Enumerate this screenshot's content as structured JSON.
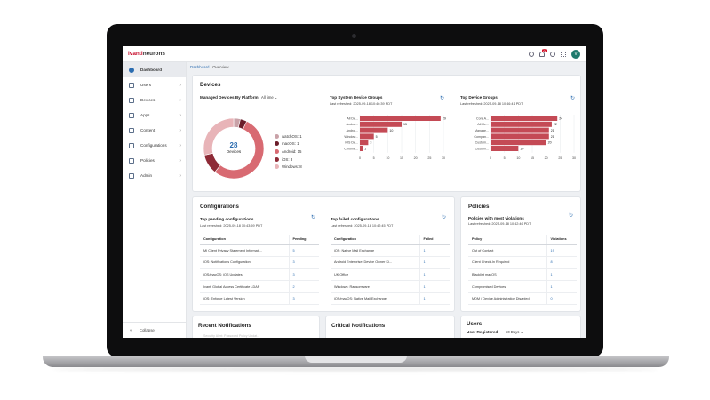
{
  "topbar": {
    "logo_a": "ivanti",
    "logo_b": "neurons",
    "notif_count": "22",
    "avatar": "V"
  },
  "sidebar": {
    "items": [
      {
        "label": "Dashboard",
        "icon": "dashboard-icon",
        "active": true
      },
      {
        "label": "Users",
        "icon": "users-icon"
      },
      {
        "label": "Devices",
        "icon": "devices-icon"
      },
      {
        "label": "Apps",
        "icon": "apps-icon"
      },
      {
        "label": "Content",
        "icon": "content-icon"
      },
      {
        "label": "Configurations",
        "icon": "configurations-icon"
      },
      {
        "label": "Policies",
        "icon": "policies-icon"
      },
      {
        "label": "Admin",
        "icon": "admin-icon"
      }
    ],
    "collapse": "Collapse"
  },
  "breadcrumb": {
    "link": "Dashboard",
    "current": " / Overview"
  },
  "devices": {
    "title": "Devices",
    "platform_title": "Managed Devices By Platform",
    "platform_filter": "All time",
    "total": "28",
    "total_label": "Devices",
    "platforms": [
      {
        "label": "watchOS: 1",
        "value": 1,
        "color": "#c9a2a8"
      },
      {
        "label": "macOS: 1",
        "value": 1,
        "color": "#6b1d2a"
      },
      {
        "label": "Android: 15",
        "value": 15,
        "color": "#d86a72"
      },
      {
        "label": "iOS: 3",
        "value": 3,
        "color": "#8e2a36"
      },
      {
        "label": "Windows: 8",
        "value": 8,
        "color": "#e8b4b8"
      }
    ]
  },
  "chart_data": [
    {
      "type": "bar",
      "title": "Top System Device Groups",
      "subtitle": "Last refreshed: 2025-09-18 10:46:39 PDT",
      "categories": [
        "All De...",
        "Androi...",
        "Androi...",
        "Window...",
        "iOS De...",
        "Chrome..."
      ],
      "values": [
        29,
        15,
        10,
        5,
        3,
        1
      ],
      "xlim": [
        0,
        30
      ],
      "ticks": [
        0,
        5,
        10,
        15,
        20,
        25,
        30
      ]
    },
    {
      "type": "bar",
      "title": "Top Device Groups",
      "subtitle": "Last refreshed: 2025-09-18 10:46:41 PDT",
      "categories": [
        "Core A...",
        "All Re...",
        "Manage...",
        "Compan...",
        "Custom...",
        "Custom..."
      ],
      "values": [
        24,
        22,
        21,
        21,
        20,
        10
      ],
      "xlim": [
        0,
        30
      ],
      "ticks": [
        0,
        5,
        10,
        15,
        20,
        25,
        30
      ]
    }
  ],
  "configurations": {
    "title": "Configurations",
    "pending": {
      "title": "Top pending configurations",
      "refreshed": "Last refreshed: 2025-09-18 10:43:59 PDT",
      "col1": "Configuration",
      "col2": "Pending",
      "rows": [
        [
          "MI Client Privacy Statement Informati...",
          "5"
        ],
        [
          "iOS: Notifications Configuration",
          "3"
        ],
        [
          "iOS/macOS: iOS Updates",
          "3"
        ],
        [
          "Ivanti Global Access Certificate LDAP",
          "2"
        ],
        [
          "iOS: Enforce Latest Version",
          "3"
        ]
      ]
    },
    "failed": {
      "title": "Top failed configurations",
      "refreshed": "Last refreshed: 2025-09-18 10:42:45 PDT",
      "col1": "Configuration",
      "col2": "Failed",
      "rows": [
        [
          "iOS: Native Mail Exchange",
          "1"
        ],
        [
          "Android Enterprise: Device Owner Ki...",
          "1"
        ],
        [
          "UK Office",
          "1"
        ],
        [
          "Windows: Ransomware",
          "1"
        ],
        [
          "iOS/macOS: Native Mail Exchange",
          "1"
        ]
      ]
    }
  },
  "policies": {
    "title": "Policies",
    "sub": "Policies with most violations",
    "refreshed": "Last refreshed: 2025-09-18 10:42:46 PDT",
    "col1": "Policy",
    "col2": "Violations",
    "rows": [
      [
        "Out of Contact",
        "19"
      ],
      [
        "Client Check-In Required",
        "8"
      ],
      [
        "Blacklist macOS",
        "1"
      ],
      [
        "Compromised Devices",
        "1"
      ],
      [
        "MDM / Device Administration Disabled",
        "0"
      ]
    ]
  },
  "recent": {
    "title": "Recent Notifications",
    "faded": "Security Alert: Password Policy Updat..."
  },
  "critical": {
    "title": "Critical Notifications"
  },
  "users": {
    "title": "Users",
    "sub": "User Registered",
    "filter": "30 Days"
  }
}
